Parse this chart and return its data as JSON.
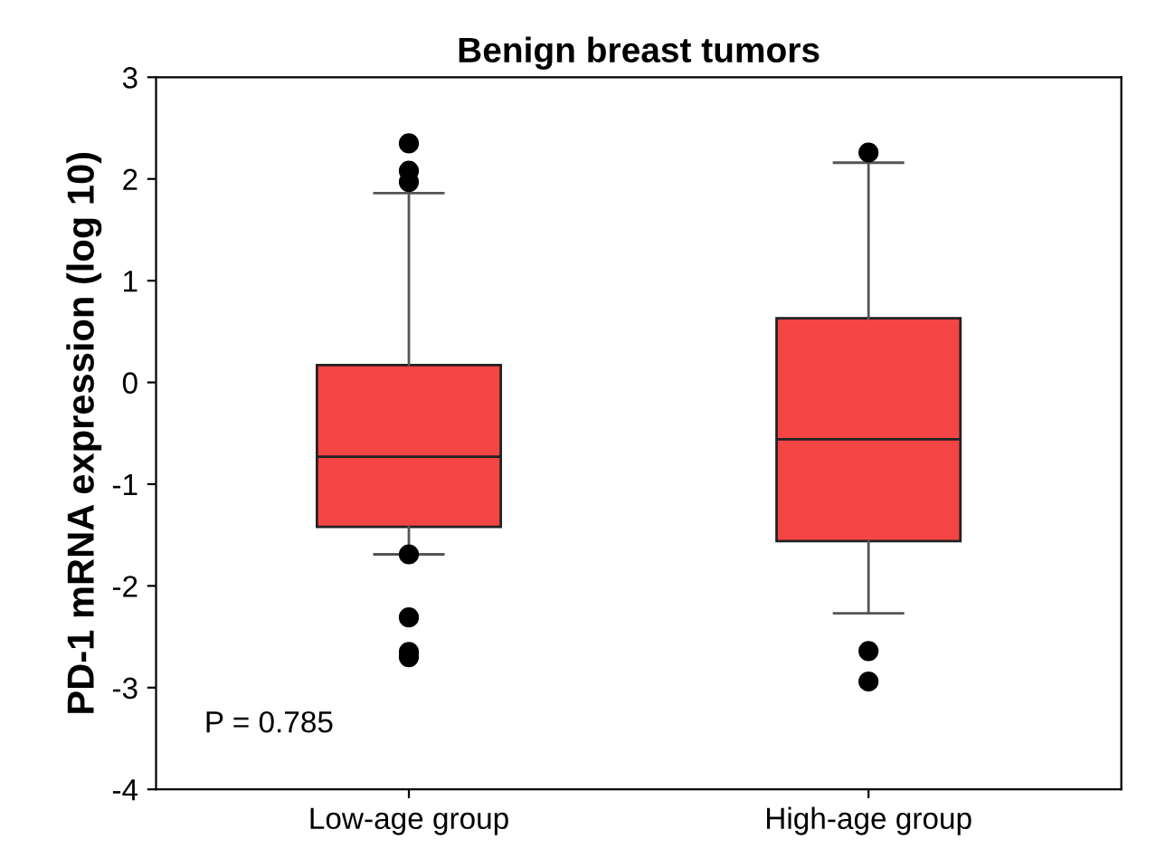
{
  "chart_data": {
    "type": "box",
    "title": "Benign breast tumors",
    "ylabel": "PD-1 mRNA expression (log 10)",
    "categories": [
      "Low-age group",
      "High-age group"
    ],
    "color": "#f44444",
    "ylim": [
      -4,
      3
    ],
    "yticks": [
      -4,
      -3,
      -2,
      -1,
      0,
      1,
      2,
      3
    ],
    "grid": false,
    "marker": "circle",
    "boxes": [
      {
        "low": -1.69,
        "q1": -1.42,
        "median": -0.73,
        "q3": 0.17,
        "high": 1.86,
        "outliers": [
          2.35,
          2.08,
          1.97,
          -1.69,
          -2.31,
          -2.65,
          -2.7
        ]
      },
      {
        "low": -2.27,
        "q1": -1.56,
        "median": -0.56,
        "q3": 0.63,
        "high": 2.16,
        "outliers": [
          2.26,
          -2.64,
          -2.94
        ]
      }
    ],
    "annotations": [
      "P = 0.785"
    ]
  }
}
